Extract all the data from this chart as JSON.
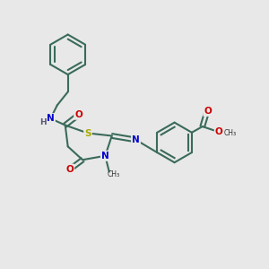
{
  "bg_color": "#e8e8e8",
  "bond_color": "#3a6b5a",
  "bond_lw": 1.5,
  "atom_colors": {
    "N": "#0000cc",
    "O": "#cc0000",
    "S": "#aaaa00",
    "C": "#000000",
    "H": "#555577"
  },
  "font_size": 7.5,
  "font_size_small": 6.5
}
